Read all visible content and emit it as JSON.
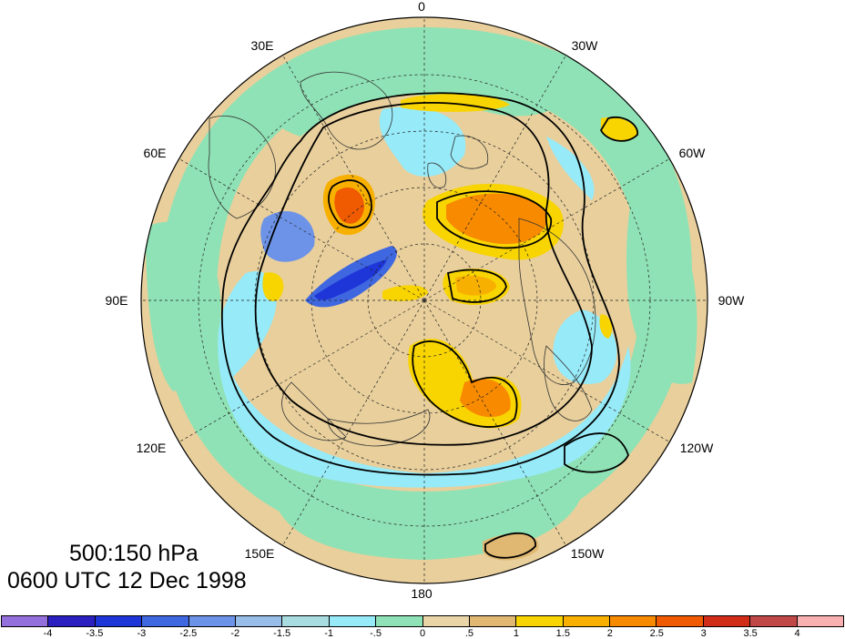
{
  "figure": {
    "title_line1": "500:150 hPa",
    "title_line2": "0600 UTC 12 Dec 1998"
  },
  "longitude_labels": {
    "lon_0": "0",
    "lon_30w": "30W",
    "lon_60w": "60W",
    "lon_90w": "90W",
    "lon_120w": "120W",
    "lon_150w": "150W",
    "lon_180": "180",
    "lon_150e": "150E",
    "lon_120e": "120E",
    "lon_90e": "90E",
    "lon_60e": "60E",
    "lon_30e": "30E"
  },
  "colorbar": {
    "tick_labels": [
      "-4",
      "-3.5",
      "-3",
      "-2.5",
      "-2",
      "-1.5",
      "-1",
      "-.5",
      "0",
      ".5",
      "1",
      "1.5",
      "2",
      "2.5",
      "3",
      "3.5",
      "4"
    ],
    "colors": [
      "#9370db",
      "#2c1fbf",
      "#1e35d8",
      "#3f67e0",
      "#6d93e8",
      "#97bde8",
      "#a9dce0",
      "#97eaf8",
      "#8fe2b5",
      "#ead5a9",
      "#e0b872",
      "#f8d400",
      "#f8b000",
      "#f88a00",
      "#f05a00",
      "#d02c18",
      "#c04848",
      "#f8b0b0"
    ]
  },
  "map": {
    "projection": "north-polar-stereographic",
    "field_legend_colors": {
      "land_background": "#e8cf9c",
      "ocean_green": "#8fe2b5",
      "cyan_negative": "#97eaf8",
      "blue_negative": "#6d93e8",
      "yellow_positive": "#f8d400",
      "orange_positive": "#f88a00",
      "red_positive": "#d02c18"
    }
  }
}
